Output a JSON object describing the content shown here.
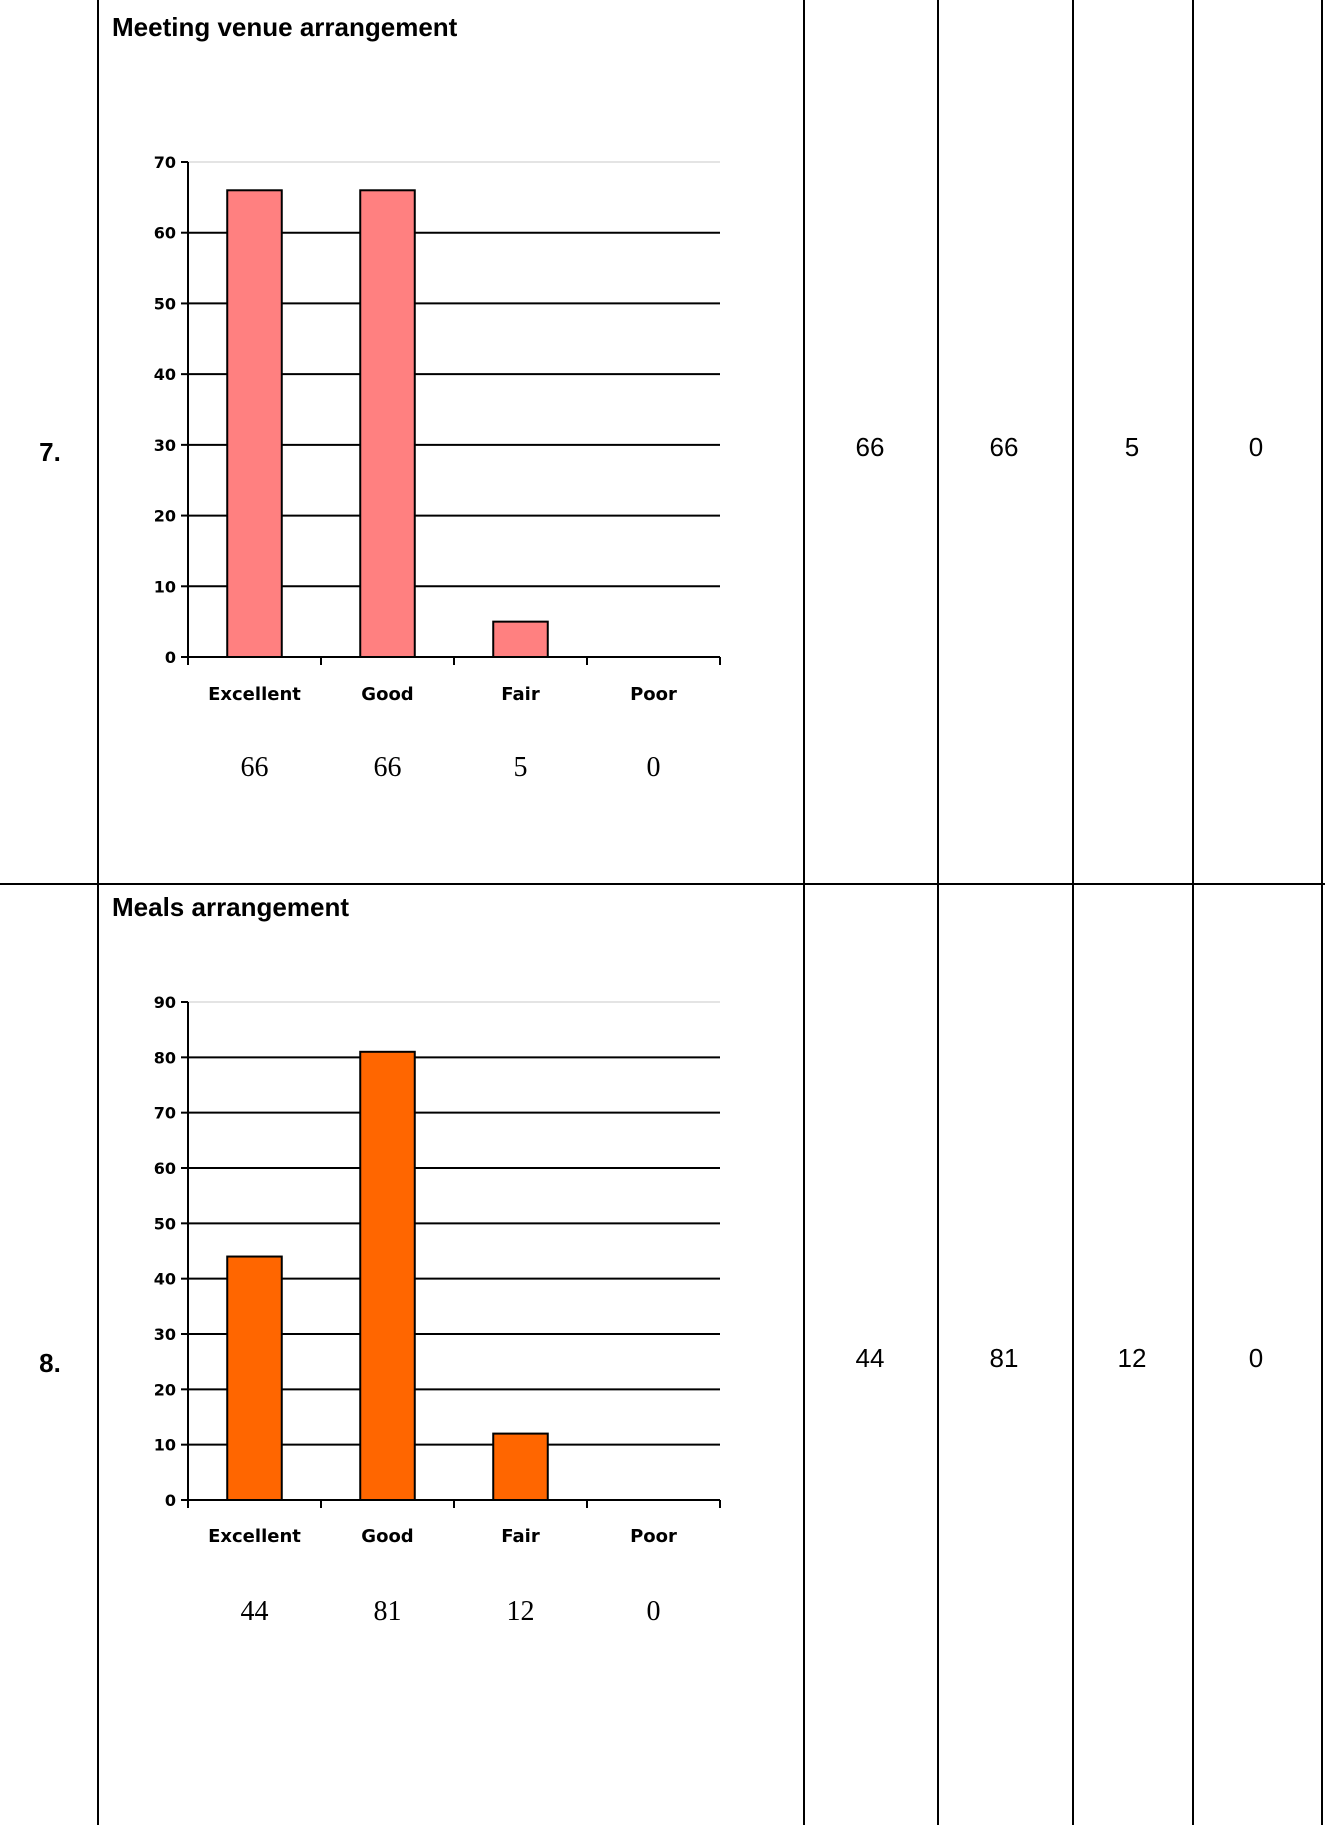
{
  "rows": [
    {
      "number": "7.",
      "title": "Meeting venue arrangement",
      "counts": [
        "66",
        "66",
        "5",
        "0"
      ]
    },
    {
      "number": "8.",
      "title": "Meals arrangement",
      "counts": [
        "44",
        "81",
        "12",
        "0"
      ]
    }
  ],
  "chart_data": [
    {
      "type": "bar",
      "title": "Meeting venue arrangement",
      "categories": [
        "Excellent",
        "Good",
        "Fair",
        "Poor"
      ],
      "values": [
        66,
        66,
        5,
        0
      ],
      "value_labels": [
        "66",
        "66",
        "5",
        "0"
      ],
      "ylim": [
        0,
        70
      ],
      "yticks": [
        0,
        10,
        20,
        30,
        40,
        50,
        60,
        70
      ],
      "grid": true,
      "legend": "none",
      "bar_color": "#ff8080"
    },
    {
      "type": "bar",
      "title": "Meals arrangement",
      "categories": [
        "Excellent",
        "Good",
        "Fair",
        "Poor"
      ],
      "values": [
        44,
        81,
        12,
        0
      ],
      "value_labels": [
        "44",
        "81",
        "12",
        "0"
      ],
      "ylim": [
        0,
        90
      ],
      "yticks": [
        0,
        10,
        20,
        30,
        40,
        50,
        60,
        70,
        80,
        90
      ],
      "grid": true,
      "legend": "none",
      "bar_color": "#ff6600"
    }
  ]
}
